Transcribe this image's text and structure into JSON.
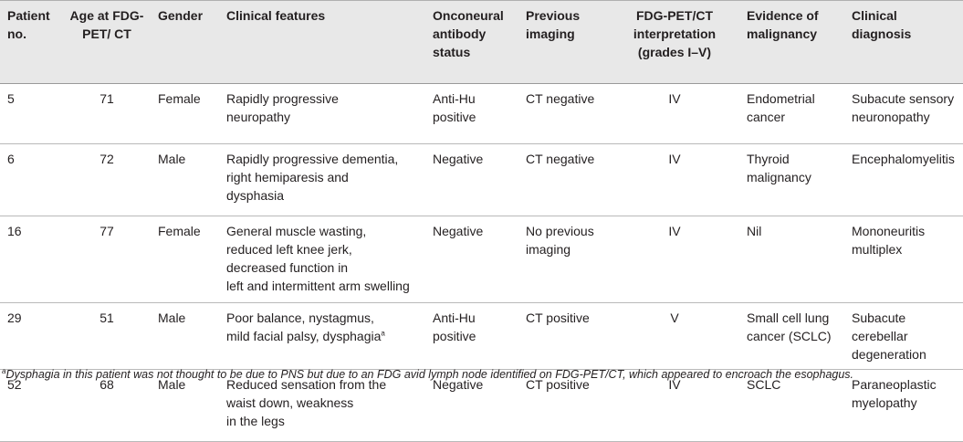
{
  "table": {
    "headers": [
      "Patient no.",
      "Age at FDG-PET/ CT",
      "Gender",
      "Clinical features",
      "Onconeural antibody status",
      "Previous imaging",
      "FDG-PET/CT interpretation (grades I–V)",
      "Evidence of malignancy",
      "Clinical diagnosis"
    ],
    "rows": [
      {
        "patient": "5",
        "age": "71",
        "gender": "Female",
        "features": [
          "Rapidly progressive",
          "neuropathy"
        ],
        "antibody": [
          "Anti-Hu",
          "positive"
        ],
        "imaging": [
          "CT negative"
        ],
        "grade": "IV",
        "malignancy": [
          "Endometrial",
          "cancer"
        ],
        "diagnosis": [
          "Subacute sensory",
          "neuronopathy"
        ]
      },
      {
        "patient": "6",
        "age": "72",
        "gender": "Male",
        "features": [
          "Rapidly progressive dementia,",
          "right hemiparesis and",
          "dysphasia"
        ],
        "antibody": [
          "Negative"
        ],
        "imaging": [
          "CT negative"
        ],
        "grade": "IV",
        "malignancy": [
          "Thyroid",
          "malignancy"
        ],
        "diagnosis": [
          "Encephalomyelitis"
        ]
      },
      {
        "patient": "16",
        "age": "77",
        "gender": "Female",
        "features": [
          "General muscle wasting,",
          "reduced left knee jerk,",
          "decreased function in",
          "left and intermittent arm swelling"
        ],
        "antibody": [
          "Negative"
        ],
        "imaging": [
          "No previous",
          "imaging"
        ],
        "grade": "IV",
        "malignancy": [
          "Nil"
        ],
        "diagnosis": [
          "Mononeuritis",
          "multiplex"
        ]
      },
      {
        "patient": "29",
        "age": "51",
        "gender": "Male",
        "features": [
          "Poor balance, nystagmus,",
          "mild facial palsy, dysphagia"
        ],
        "features_sup": "a",
        "antibody": [
          "Anti-Hu",
          "positive"
        ],
        "imaging": [
          "CT positive"
        ],
        "grade": "V",
        "malignancy": [
          "Small cell lung",
          "cancer (SCLC)"
        ],
        "diagnosis": [
          "Subacute cerebellar",
          "degeneration"
        ]
      },
      {
        "patient": "52",
        "age": "68",
        "gender": "Male",
        "features": [
          "Reduced sensation from the",
          "waist down, weakness",
          "in the legs"
        ],
        "antibody": [
          "Negative"
        ],
        "imaging": [
          "CT positive"
        ],
        "grade": "IV",
        "malignancy": [
          "SCLC"
        ],
        "diagnosis": [
          "Paraneoplastic",
          "myelopathy"
        ]
      }
    ]
  },
  "footnote": {
    "marker": "a",
    "text": "Dysphagia in this patient was not thought to be due to PNS but due to an FDG avid lymph node identified on FDG-PET/CT, which appeared to encroach the esophagus."
  }
}
